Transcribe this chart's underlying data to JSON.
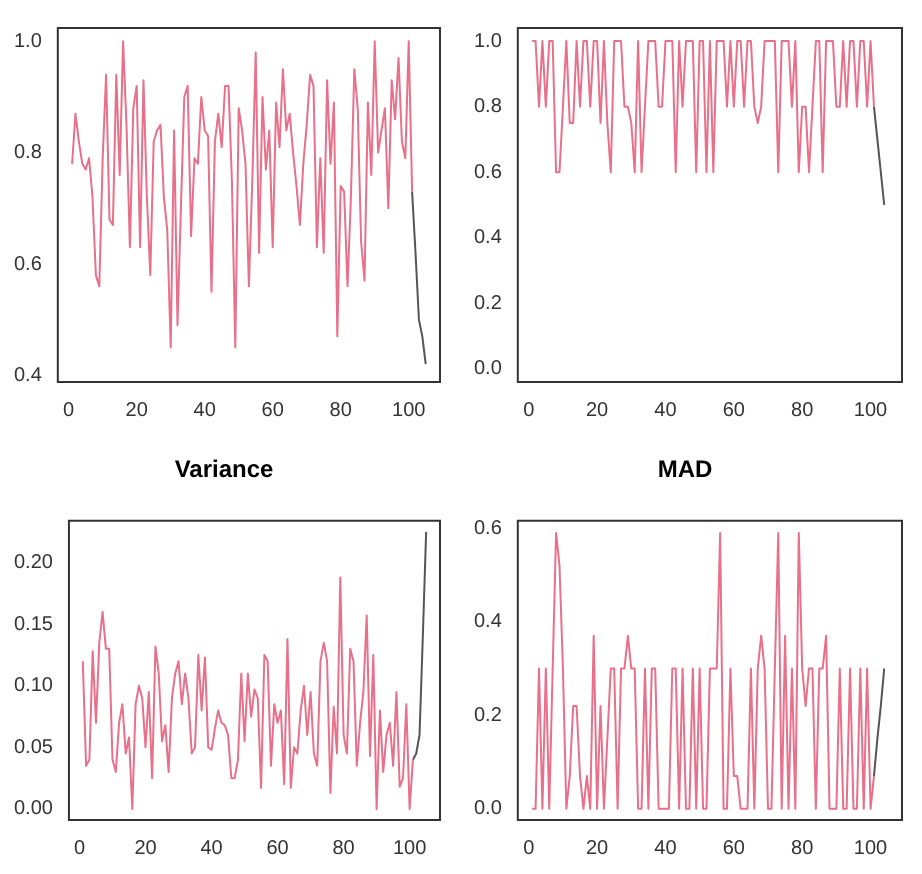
{
  "chart_data": [
    {
      "type": "line",
      "marker": "none",
      "grid": false,
      "legend": false,
      "xlim": [
        -3.2,
        109.2
      ],
      "xticks": [
        0,
        20,
        40,
        60,
        80,
        100
      ],
      "ylim": [
        0.388,
        1.024
      ],
      "yticks": [
        0.4,
        0.6,
        0.8,
        {
          "value": 1,
          "label": "1.0"
        }
      ],
      "x": [
        1,
        2,
        3,
        4,
        5,
        6,
        7,
        8,
        9,
        10,
        11,
        12,
        13,
        14,
        15,
        16,
        17,
        18,
        19,
        20,
        21,
        22,
        23,
        24,
        25,
        26,
        27,
        28,
        29,
        30,
        31,
        32,
        33,
        34,
        35,
        36,
        37,
        38,
        39,
        40,
        41,
        42,
        43,
        44,
        45,
        46,
        47,
        48,
        49,
        50,
        51,
        52,
        53,
        54,
        55,
        56,
        57,
        58,
        59,
        60,
        61,
        62,
        63,
        64,
        65,
        66,
        67,
        68,
        69,
        70,
        71,
        72,
        73,
        74,
        75,
        76,
        77,
        78,
        79,
        80,
        81,
        82,
        83,
        84,
        85,
        86,
        87,
        88,
        89,
        90,
        91,
        92,
        93,
        94,
        95,
        96,
        97,
        98,
        99,
        100,
        101
      ],
      "series": [
        {
          "color": "#e8708a",
          "values": [
            0.78,
            0.87,
            0.82,
            0.78,
            0.77,
            0.79,
            0.72,
            0.58,
            0.56,
            0.79,
            0.94,
            0.68,
            0.67,
            0.94,
            0.76,
            1.0,
            0.85,
            0.63,
            0.88,
            0.92,
            0.63,
            0.93,
            0.72,
            0.58,
            0.82,
            0.84,
            0.85,
            0.72,
            0.66,
            0.45,
            0.84,
            0.49,
            0.7,
            0.9,
            0.92,
            0.65,
            0.79,
            0.78,
            0.9,
            0.84,
            0.83,
            0.55,
            0.82,
            0.87,
            0.81,
            0.92,
            0.92,
            0.75,
            0.45,
            0.88,
            0.84,
            0.78,
            0.56,
            0.75,
            0.98,
            0.62,
            0.9,
            0.77,
            0.84,
            0.63,
            0.89,
            0.81,
            0.95,
            0.84,
            0.87,
            0.8,
            0.74,
            0.67,
            0.78,
            0.85,
            0.94,
            0.92,
            0.63,
            0.79,
            0.62,
            0.93,
            0.78,
            0.89,
            0.47,
            0.74,
            0.73,
            0.56,
            0.72,
            0.95,
            0.88,
            0.64,
            0.57,
            0.89,
            0.76,
            1.0,
            0.8,
            0.84,
            0.88,
            0.7,
            0.93,
            0.86,
            0.97,
            0.82,
            0.79,
            1.0,
            0.73
          ]
        },
        {
          "color": "#555555",
          "x": [
            101,
            102,
            103,
            104,
            105
          ],
          "values": [
            0.73,
            0.62,
            0.5,
            0.47,
            0.42
          ]
        }
      ]
    },
    {
      "type": "line",
      "marker": "none",
      "grid": false,
      "legend": false,
      "xlim": [
        -3.2,
        109.2
      ],
      "xticks": [
        0,
        20,
        40,
        60,
        80,
        100
      ],
      "ylim": [
        -0.04,
        1.04
      ],
      "yticks": [
        {
          "value": 0,
          "label": "0.0"
        },
        0.2,
        0.4,
        0.6,
        0.8,
        {
          "value": 1,
          "label": "1.0"
        }
      ],
      "x": [
        1,
        2,
        3,
        4,
        5,
        6,
        7,
        8,
        9,
        10,
        11,
        12,
        13,
        14,
        15,
        16,
        17,
        18,
        19,
        20,
        21,
        22,
        23,
        24,
        25,
        26,
        27,
        28,
        29,
        30,
        31,
        32,
        33,
        34,
        35,
        36,
        37,
        38,
        39,
        40,
        41,
        42,
        43,
        44,
        45,
        46,
        47,
        48,
        49,
        50,
        51,
        52,
        53,
        54,
        55,
        56,
        57,
        58,
        59,
        60,
        61,
        62,
        63,
        64,
        65,
        66,
        67,
        68,
        69,
        70,
        71,
        72,
        73,
        74,
        75,
        76,
        77,
        78,
        79,
        80,
        81,
        82,
        83,
        84,
        85,
        86,
        87,
        88,
        89,
        90,
        91,
        92,
        93,
        94,
        95,
        96,
        97,
        98,
        99,
        100,
        101
      ],
      "series": [
        {
          "color": "#e8708a",
          "values": [
            1,
            1,
            0.8,
            1,
            0.8,
            1,
            1,
            0.6,
            0.6,
            0.8,
            1,
            0.75,
            0.75,
            1,
            0.8,
            1,
            1,
            0.8,
            1,
            1,
            0.75,
            1,
            0.75,
            0.6,
            1,
            1,
            1,
            0.8,
            0.8,
            0.75,
            0.6,
            1,
            0.6,
            0.8,
            1,
            1,
            1,
            0.8,
            0.8,
            1,
            1,
            1,
            0.6,
            1,
            0.8,
            1,
            1,
            1,
            0.6,
            1,
            1,
            0.6,
            1,
            0.6,
            1,
            1,
            1,
            0.8,
            1,
            0.8,
            1,
            1,
            0.8,
            1,
            1,
            0.8,
            0.75,
            0.8,
            1,
            1,
            1,
            1,
            0.6,
            1,
            1,
            1,
            0.8,
            1,
            0.6,
            0.8,
            0.8,
            0.6,
            0.8,
            1,
            1,
            0.6,
            1,
            1,
            1,
            0.8,
            0.8,
            1,
            0.8,
            1,
            1,
            0.8,
            1,
            1,
            0.8,
            1,
            0.8
          ]
        },
        {
          "color": "#555555",
          "x": [
            101,
            102,
            103,
            104
          ],
          "values": [
            0.8,
            0.7,
            0.6,
            0.5
          ]
        }
      ]
    },
    {
      "type": "line",
      "title": "Variance",
      "marker": "none",
      "grid": false,
      "legend": false,
      "xlim": [
        -3.2,
        109.2
      ],
      "xticks": [
        0,
        20,
        40,
        60,
        80,
        100
      ],
      "ylim": [
        -0.009,
        0.234
      ],
      "yticks": [
        {
          "value": 0,
          "label": "0.00"
        },
        0.05,
        {
          "value": 0.1,
          "label": "0.10"
        },
        0.15,
        {
          "value": 0.2,
          "label": "0.20"
        }
      ],
      "x": [
        1,
        2,
        3,
        4,
        5,
        6,
        7,
        8,
        9,
        10,
        11,
        12,
        13,
        14,
        15,
        16,
        17,
        18,
        19,
        20,
        21,
        22,
        23,
        24,
        25,
        26,
        27,
        28,
        29,
        30,
        31,
        32,
        33,
        34,
        35,
        36,
        37,
        38,
        39,
        40,
        41,
        42,
        43,
        44,
        45,
        46,
        47,
        48,
        49,
        50,
        51,
        52,
        53,
        54,
        55,
        56,
        57,
        58,
        59,
        60,
        61,
        62,
        63,
        64,
        65,
        66,
        67,
        68,
        69,
        70,
        71,
        72,
        73,
        74,
        75,
        76,
        77,
        78,
        79,
        80,
        81,
        82,
        83,
        84,
        85,
        86,
        87,
        88,
        89,
        90,
        91,
        92,
        93,
        94,
        95,
        96,
        97,
        98,
        99,
        100,
        101
      ],
      "series": [
        {
          "color": "#e8708a",
          "values": [
            0.12,
            0.035,
            0.04,
            0.128,
            0.07,
            0.135,
            0.16,
            0.13,
            0.13,
            0.04,
            0.03,
            0.07,
            0.085,
            0.045,
            0.058,
            0.0,
            0.085,
            0.1,
            0.09,
            0.05,
            0.095,
            0.025,
            0.132,
            0.11,
            0.055,
            0.068,
            0.03,
            0.09,
            0.11,
            0.12,
            0.085,
            0.11,
            0.09,
            0.045,
            0.05,
            0.125,
            0.08,
            0.123,
            0.05,
            0.048,
            0.065,
            0.08,
            0.07,
            0.068,
            0.06,
            0.025,
            0.025,
            0.04,
            0.11,
            0.055,
            0.11,
            0.075,
            0.097,
            0.09,
            0.017,
            0.125,
            0.12,
            0.035,
            0.085,
            0.07,
            0.08,
            0.02,
            0.138,
            0.017,
            0.05,
            0.045,
            0.08,
            0.1,
            0.06,
            0.095,
            0.045,
            0.035,
            0.12,
            0.135,
            0.12,
            0.013,
            0.083,
            0.045,
            0.188,
            0.06,
            0.045,
            0.13,
            0.12,
            0.035,
            0.07,
            0.095,
            0.157,
            0.043,
            0.125,
            0.0,
            0.08,
            0.03,
            0.06,
            0.07,
            0.035,
            0.095,
            0.018,
            0.025,
            0.085,
            0.0,
            0.04
          ]
        },
        {
          "color": "#555555",
          "x": [
            101,
            102,
            103,
            104,
            105
          ],
          "values": [
            0.04,
            0.045,
            0.06,
            0.14,
            0.225
          ]
        }
      ]
    },
    {
      "type": "line",
      "title": "MAD",
      "marker": "none",
      "grid": false,
      "legend": false,
      "xlim": [
        -3.2,
        109.2
      ],
      "xticks": [
        0,
        20,
        40,
        60,
        80,
        100
      ],
      "ylim": [
        -0.024,
        0.616
      ],
      "yticks": [
        {
          "value": 0,
          "label": "0.0"
        },
        0.2,
        0.4,
        0.6
      ],
      "x": [
        1,
        2,
        3,
        4,
        5,
        6,
        7,
        8,
        9,
        10,
        11,
        12,
        13,
        14,
        15,
        16,
        17,
        18,
        19,
        20,
        21,
        22,
        23,
        24,
        25,
        26,
        27,
        28,
        29,
        30,
        31,
        32,
        33,
        34,
        35,
        36,
        37,
        38,
        39,
        40,
        41,
        42,
        43,
        44,
        45,
        46,
        47,
        48,
        49,
        50,
        51,
        52,
        53,
        54,
        55,
        56,
        57,
        58,
        59,
        60,
        61,
        62,
        63,
        64,
        65,
        66,
        67,
        68,
        69,
        70,
        71,
        72,
        73,
        74,
        75,
        76,
        77,
        78,
        79,
        80,
        81,
        82,
        83,
        84,
        85,
        86,
        87,
        88,
        89,
        90,
        91,
        92,
        93,
        94,
        95,
        96,
        97,
        98,
        99,
        100,
        101
      ],
      "series": [
        {
          "color": "#e8708a",
          "values": [
            0,
            0,
            0.3,
            0,
            0.3,
            0,
            0.3,
            0.59,
            0.52,
            0.3,
            0,
            0.07,
            0.22,
            0.22,
            0.07,
            0,
            0.07,
            0,
            0.37,
            0,
            0.22,
            0,
            0.15,
            0.3,
            0.3,
            0,
            0.3,
            0.3,
            0.37,
            0.3,
            0.3,
            0,
            0,
            0.3,
            0,
            0.3,
            0.3,
            0,
            0,
            0,
            0,
            0.3,
            0.3,
            0,
            0.3,
            0,
            0,
            0.3,
            0,
            0.3,
            0,
            0,
            0.3,
            0.3,
            0.3,
            0.59,
            0,
            0,
            0.3,
            0.07,
            0.07,
            0,
            0,
            0,
            0.3,
            0,
            0.3,
            0.37,
            0.3,
            0,
            0,
            0.3,
            0.59,
            0,
            0.37,
            0,
            0.3,
            0,
            0.59,
            0.3,
            0.22,
            0.3,
            0.3,
            0,
            0.3,
            0.3,
            0.37,
            0,
            0,
            0,
            0.3,
            0,
            0,
            0.3,
            0,
            0,
            0.3,
            0,
            0.3,
            0,
            0.07
          ]
        },
        {
          "color": "#555555",
          "x": [
            101,
            102,
            103,
            104
          ],
          "values": [
            0.07,
            0.15,
            0.22,
            0.3
          ]
        }
      ]
    }
  ]
}
